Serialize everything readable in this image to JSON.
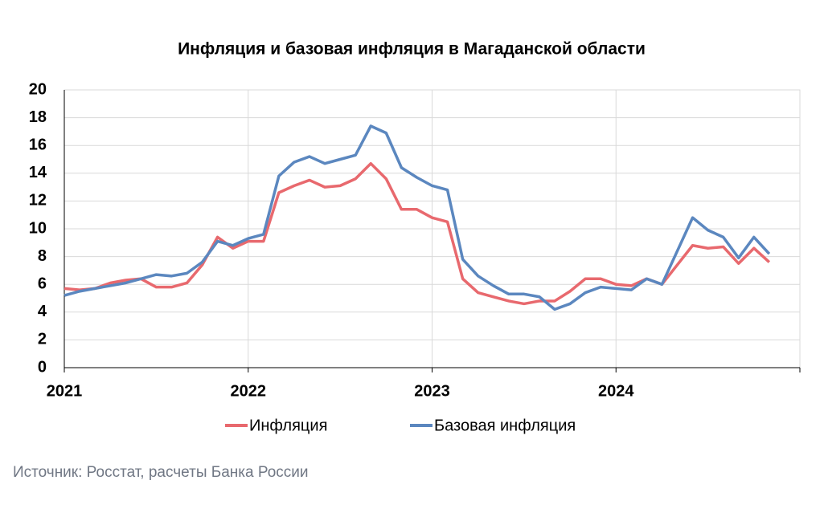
{
  "chart_data": {
    "type": "line",
    "title": "Инфляция и базовая инфляция в Магаданской области",
    "source": "Источник: Росстат, расчеты Банка России",
    "categories": [
      "2021",
      null,
      null,
      null,
      null,
      null,
      null,
      null,
      null,
      null,
      null,
      null,
      "2022",
      null,
      null,
      null,
      null,
      null,
      null,
      null,
      null,
      null,
      null,
      null,
      "2023",
      null,
      null,
      null,
      null,
      null,
      null,
      null,
      null,
      null,
      null,
      null,
      "2024",
      null,
      null,
      null,
      null,
      null,
      null,
      null,
      null,
      null,
      null
    ],
    "series": [
      {
        "name": "Инфляция",
        "color": "#e8696e",
        "values": [
          5.7,
          5.6,
          5.7,
          6.1,
          6.3,
          6.4,
          5.8,
          5.8,
          6.1,
          7.4,
          9.4,
          8.6,
          9.1,
          9.1,
          12.6,
          13.1,
          13.5,
          13.0,
          13.1,
          13.6,
          14.7,
          13.6,
          11.4,
          11.4,
          10.8,
          10.5,
          6.4,
          5.4,
          5.1,
          4.8,
          4.6,
          4.8,
          4.8,
          5.5,
          6.4,
          6.4,
          6.0,
          5.9,
          6.4,
          6.0,
          7.4,
          8.8,
          8.6,
          8.7,
          7.5,
          8.6,
          7.6
        ]
      },
      {
        "name": "Базовая инфляция",
        "color": "#5b87bf",
        "values": [
          5.2,
          5.5,
          5.7,
          5.9,
          6.1,
          6.4,
          6.7,
          6.6,
          6.8,
          7.6,
          9.1,
          8.8,
          9.3,
          9.6,
          13.8,
          14.8,
          15.2,
          14.7,
          15.0,
          15.3,
          17.4,
          16.9,
          14.4,
          13.7,
          13.1,
          12.8,
          7.8,
          6.6,
          5.9,
          5.3,
          5.3,
          5.1,
          4.2,
          4.6,
          5.4,
          5.8,
          5.7,
          5.6,
          6.4,
          6.0,
          8.4,
          10.8,
          9.9,
          9.4,
          7.9,
          9.4,
          8.2
        ]
      }
    ],
    "ylim": [
      0,
      20
    ],
    "yticks": [
      0,
      2,
      4,
      6,
      8,
      10,
      12,
      14,
      16,
      18,
      20
    ],
    "grid": true,
    "legend": "bottom"
  }
}
